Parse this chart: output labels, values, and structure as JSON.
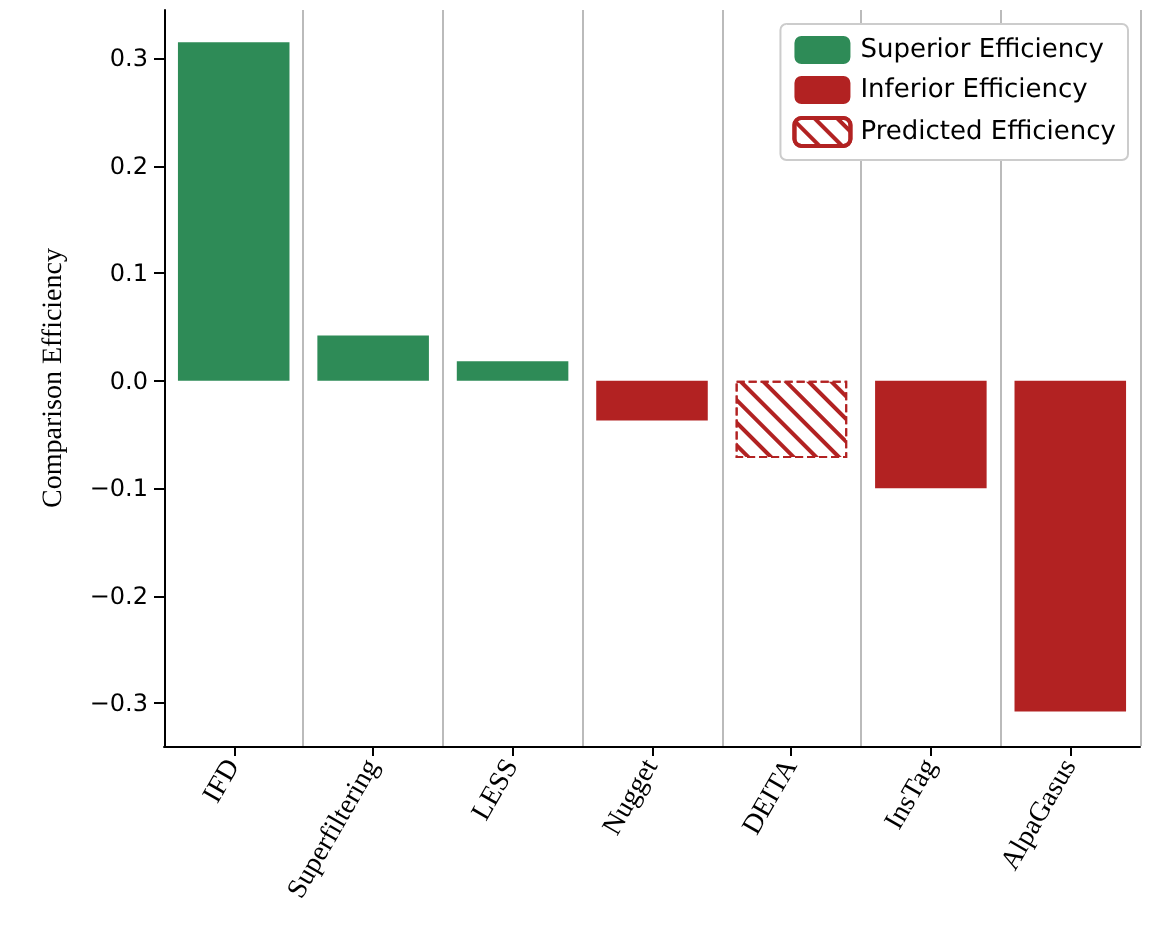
{
  "chart_data": {
    "type": "bar",
    "ylabel": "Comparison Efficiency",
    "categories": [
      "IFD",
      "Superfiltering",
      "LESS",
      "Nugget",
      "DEITA",
      "InsTag",
      "AlpaGasus"
    ],
    "stacked": true,
    "series": [
      {
        "name": "Superior Efficiency",
        "color": "#2e8b57",
        "values": [
          0.315,
          0.042,
          0.018,
          null,
          null,
          null,
          null
        ]
      },
      {
        "name": "Inferior Efficiency",
        "color": "#b22222",
        "values": [
          null,
          null,
          null,
          -0.037,
          null,
          -0.1,
          -0.308
        ]
      },
      {
        "name": "Predicted Efficiency",
        "color": "#b22222",
        "values": [
          null,
          null,
          null,
          null,
          -0.072,
          null,
          null
        ]
      }
    ],
    "ylim": [
      -0.34,
      0.345
    ],
    "yticks": [
      {
        "value": -0.3,
        "label": "−0.3"
      },
      {
        "value": -0.2,
        "label": "−0.2"
      },
      {
        "value": -0.1,
        "label": "−0.1"
      },
      {
        "value": 0,
        "label": "0.0"
      },
      {
        "value": 0.1,
        "label": "0.1"
      },
      {
        "value": 0.2,
        "label": "0.2"
      },
      {
        "value": 0.3,
        "label": "0.3"
      }
    ],
    "grid": "x",
    "legend": "top right"
  }
}
